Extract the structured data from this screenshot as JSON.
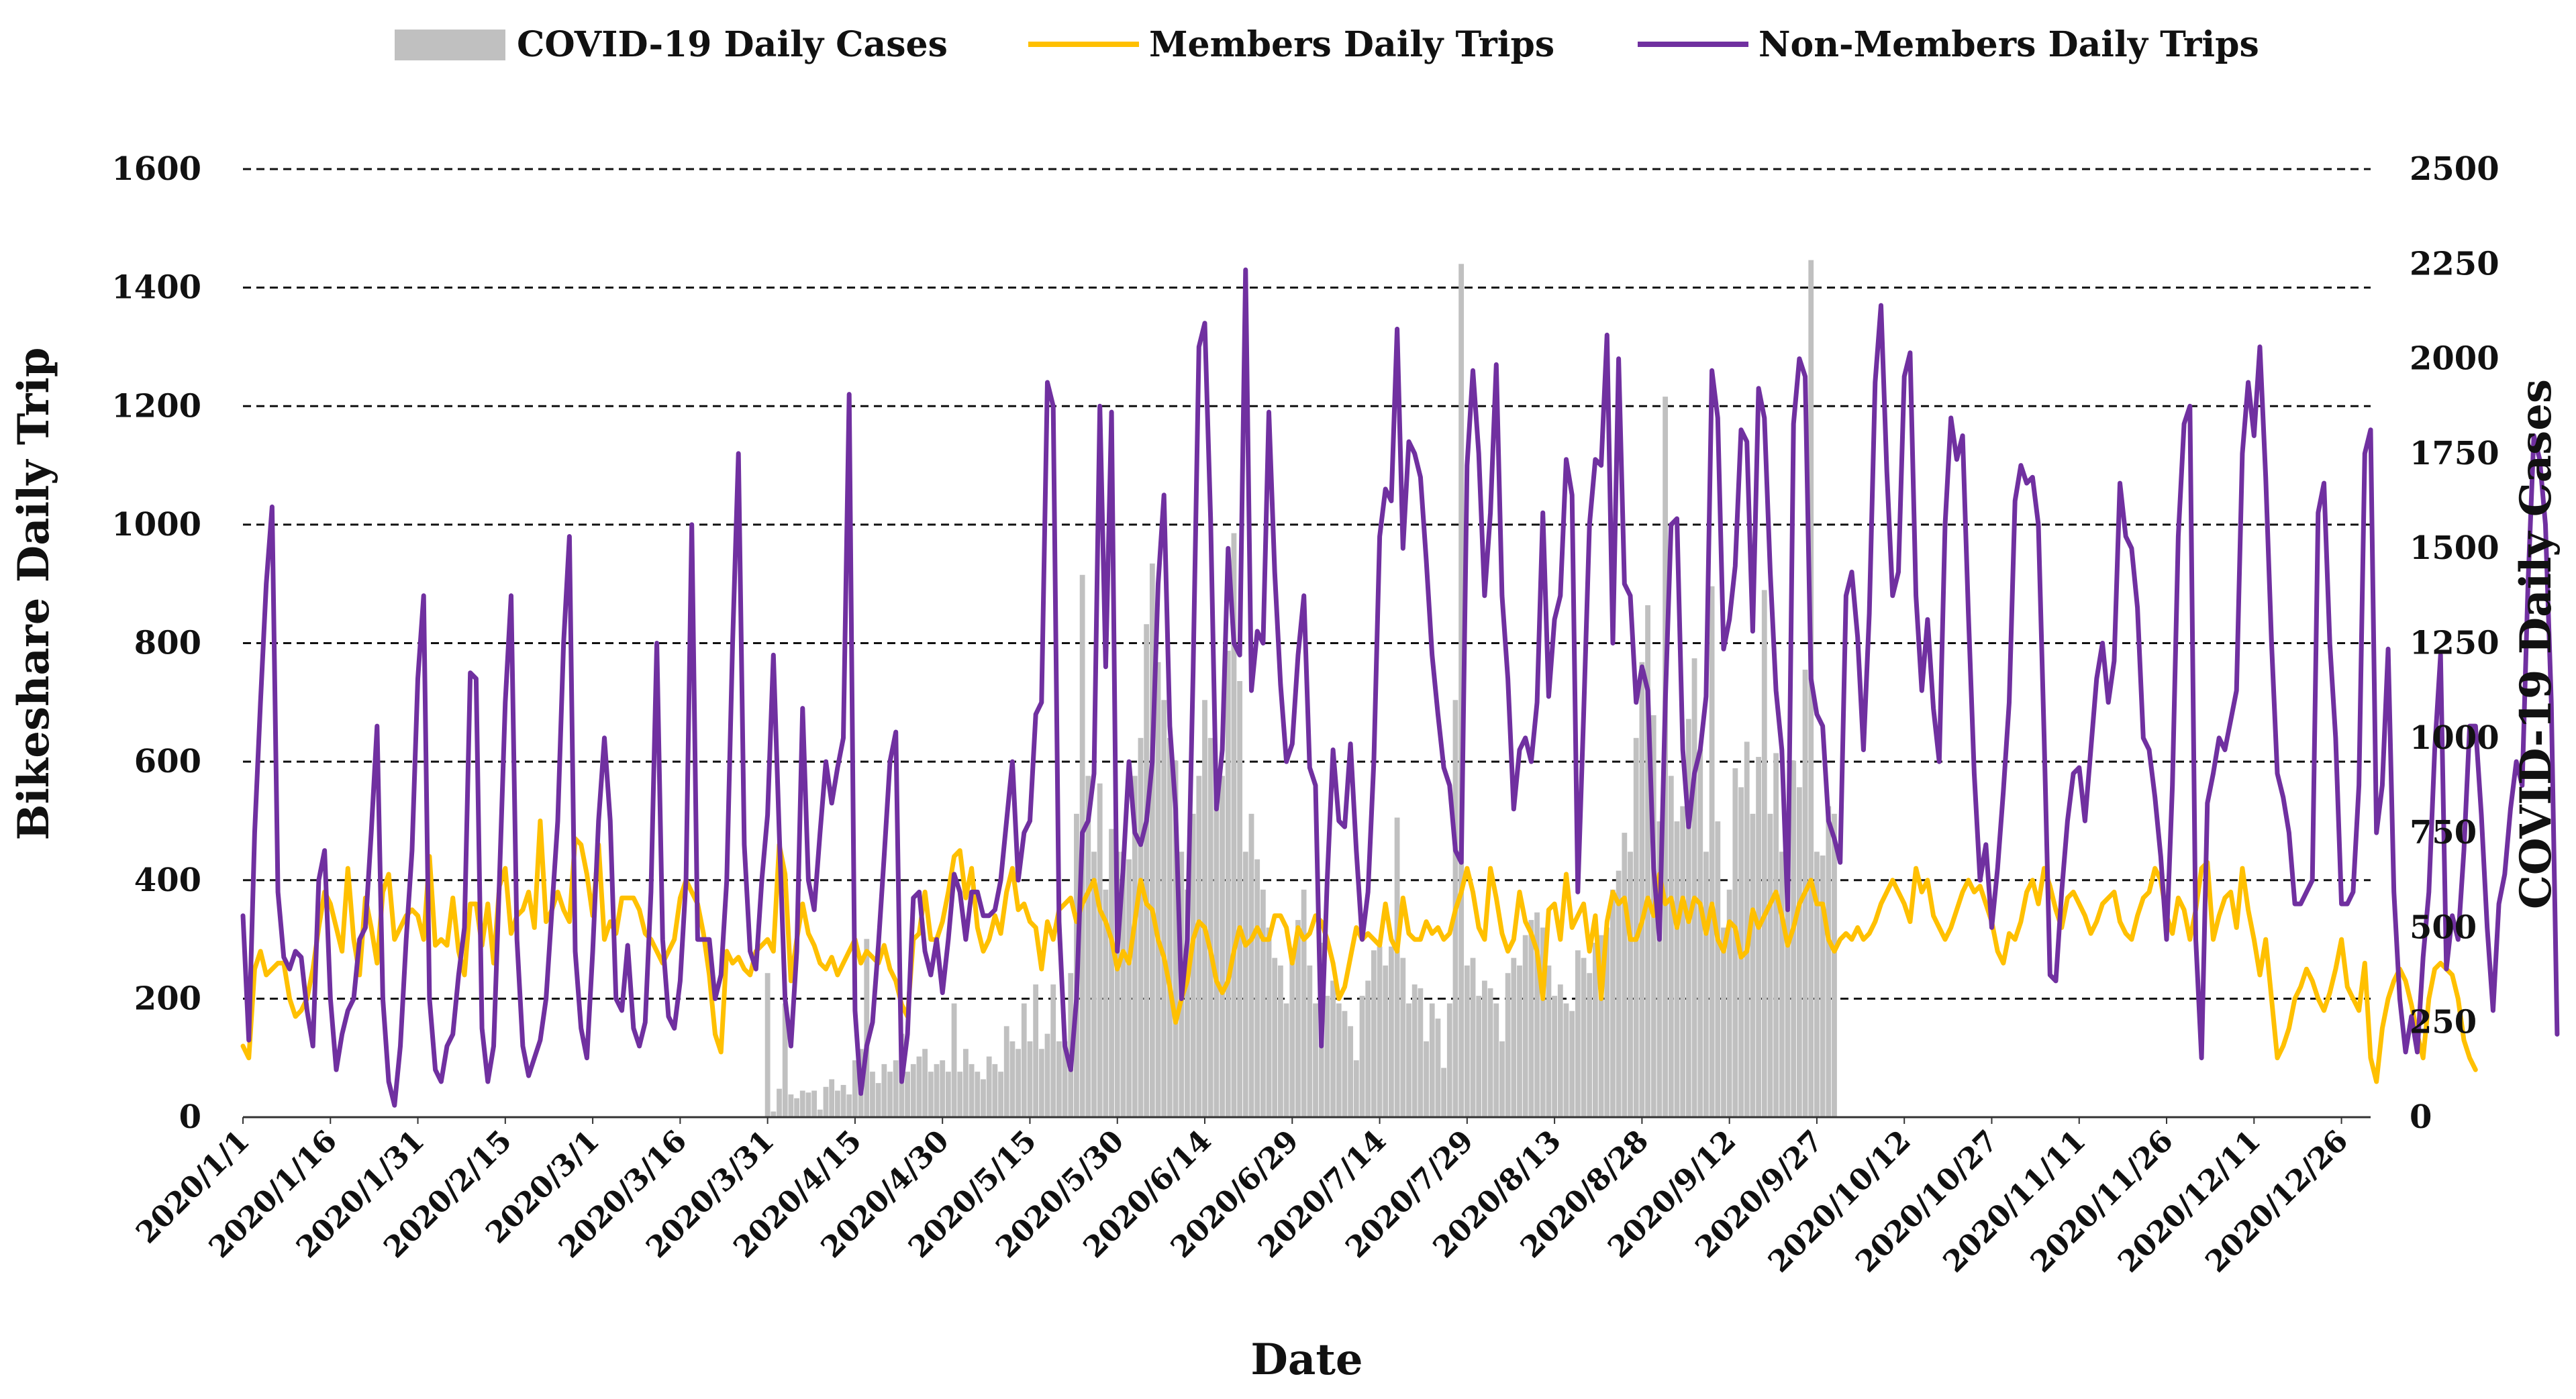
{
  "chart_data": {
    "type": "bar+line",
    "x_axis": {
      "title": "Date",
      "start_date": "2020/1/1",
      "days": 366,
      "tick_labels": [
        "2020/1/1",
        "2020/1/16",
        "2020/1/31",
        "2020/2/15",
        "2020/3/1",
        "2020/3/16",
        "2020/3/31",
        "2020/4/15",
        "2020/4/30",
        "2020/5/15",
        "2020/5/30",
        "2020/6/14",
        "2020/6/29",
        "2020/7/14",
        "2020/7/29",
        "2020/8/13",
        "2020/8/28",
        "2020/9/12",
        "2020/9/27",
        "2020/10/12",
        "2020/10/27",
        "2020/11/11",
        "2020/11/26",
        "2020/12/11",
        "2020/12/26"
      ],
      "tick_step_days": 15
    },
    "y_left": {
      "title": "Bikeshare Daily Trip",
      "ylim": [
        0,
        1600
      ],
      "ticks": [
        "0",
        "200",
        "400",
        "600",
        "800",
        "1000",
        "1200",
        "1400",
        "1600"
      ]
    },
    "y_right": {
      "title": "COVID-19 Daily Cases",
      "ylim": [
        0,
        2500
      ],
      "ticks": [
        "0",
        "250",
        "500",
        "750",
        "1000",
        "1250",
        "1500",
        "1750",
        "2000",
        "2250",
        "2500"
      ]
    },
    "grid": "horizontal dashed",
    "legend": {
      "position": "top",
      "items": [
        "COVID-19 Daily Cases",
        "Members Daily Trips",
        "Non-Members Daily Trips"
      ]
    },
    "colors": {
      "cases": "#c0c0c0",
      "members": "#ffc000",
      "non_members": "#7030a0"
    },
    "series": [
      {
        "name": "COVID-19 Daily Cases",
        "type": "bar",
        "axis": "right",
        "start_day": 90,
        "values": [
          380,
          15,
          75,
          300,
          60,
          50,
          70,
          65,
          70,
          20,
          80,
          100,
          70,
          85,
          60,
          150,
          180,
          470,
          120,
          90,
          140,
          120,
          150,
          220,
          120,
          140,
          160,
          180,
          120,
          140,
          150,
          120,
          300,
          120,
          180,
          140,
          120,
          100,
          160,
          140,
          120,
          240,
          200,
          180,
          300,
          200,
          350,
          180,
          220,
          350,
          200,
          200,
          380,
          800,
          1430,
          900,
          700,
          880,
          600,
          760,
          700,
          700,
          680,
          900,
          1000,
          1300,
          1460,
          1200,
          1100,
          1000,
          940,
          700,
          600,
          800,
          900,
          1100,
          1000,
          850,
          900,
          1230,
          1540,
          1150,
          700,
          800,
          680,
          600,
          500,
          420,
          400,
          300,
          420,
          520,
          600,
          400,
          300,
          460,
          320,
          360,
          300,
          280,
          240,
          150,
          320,
          360,
          440,
          450,
          400,
          450,
          790,
          420,
          300,
          350,
          340,
          200,
          300,
          260,
          130,
          300,
          1100,
          2250,
          400,
          420,
          320,
          360,
          340,
          300,
          200,
          380,
          420,
          400,
          480,
          520,
          540,
          500,
          400,
          320,
          350,
          300,
          280,
          440,
          420,
          380,
          460,
          480,
          500,
          600,
          650,
          750,
          700,
          1000,
          1200,
          1350,
          1060,
          780,
          1900,
          900,
          780,
          820,
          1050,
          1210,
          970,
          700,
          1400,
          780,
          500,
          600,
          920,
          870,
          990,
          800,
          950,
          1390,
          800,
          960,
          700,
          680,
          940,
          870,
          1180,
          2260,
          700,
          690,
          820,
          800
        ]
      },
      {
        "name": "Members Daily Trips",
        "type": "line",
        "axis": "left",
        "values": [
          120,
          100,
          250,
          280,
          240,
          250,
          260,
          260,
          200,
          170,
          180,
          200,
          250,
          320,
          380,
          360,
          320,
          280,
          420,
          300,
          240,
          370,
          320,
          260,
          380,
          410,
          300,
          320,
          340,
          350,
          340,
          300,
          440,
          290,
          300,
          290,
          370,
          280,
          240,
          360,
          360,
          290,
          360,
          260,
          390,
          420,
          310,
          340,
          350,
          380,
          320,
          500,
          330,
          350,
          380,
          350,
          330,
          470,
          460,
          410,
          340,
          460,
          300,
          330,
          310,
          370,
          370,
          370,
          350,
          310,
          300,
          280,
          260,
          280,
          300,
          370,
          400,
          380,
          360,
          310,
          240,
          140,
          110,
          280,
          260,
          270,
          250,
          240,
          280,
          290,
          300,
          280,
          460,
          410,
          230,
          300,
          360,
          310,
          290,
          260,
          250,
          270,
          240,
          260,
          280,
          300,
          260,
          280,
          270,
          260,
          290,
          250,
          230,
          190,
          170,
          300,
          310,
          380,
          300,
          300,
          330,
          380,
          440,
          450,
          370,
          420,
          320,
          280,
          300,
          340,
          310,
          380,
          420,
          350,
          360,
          330,
          320,
          250,
          330,
          300,
          350,
          360,
          370,
          330,
          360,
          380,
          400,
          350,
          330,
          300,
          250,
          280,
          260,
          330,
          400,
          360,
          350,
          300,
          270,
          220,
          160,
          200,
          230,
          300,
          330,
          320,
          280,
          230,
          210,
          230,
          280,
          320,
          290,
          300,
          320,
          300,
          300,
          340,
          340,
          320,
          260,
          320,
          300,
          310,
          340,
          330,
          300,
          260,
          200,
          220,
          270,
          320,
          300,
          310,
          300,
          290,
          360,
          300,
          280,
          370,
          310,
          300,
          300,
          330,
          310,
          320,
          300,
          310,
          350,
          380,
          420,
          380,
          320,
          300,
          420,
          370,
          310,
          280,
          300,
          380,
          330,
          310,
          280,
          200,
          350,
          360,
          300,
          410,
          320,
          340,
          360,
          280,
          340,
          200,
          330,
          380,
          360,
          370,
          300,
          300,
          330,
          370,
          340,
          410,
          360,
          370,
          320,
          370,
          330,
          370,
          360,
          310,
          360,
          300,
          280,
          330,
          320,
          270,
          280,
          350,
          320,
          340,
          360,
          380,
          340,
          290,
          320,
          360,
          380,
          400,
          360,
          360,
          300,
          280,
          300,
          310,
          300,
          320,
          300,
          310,
          330,
          360,
          380,
          400,
          380,
          360,
          330,
          420,
          380,
          400,
          340,
          320,
          300,
          320,
          350,
          380,
          400,
          380,
          390,
          360,
          330,
          280,
          260,
          310,
          300,
          330,
          380,
          400,
          360,
          420,
          390,
          350,
          320,
          370,
          380,
          360,
          340,
          310,
          330,
          360,
          370,
          380,
          330,
          310,
          300,
          340,
          370,
          380,
          420,
          400,
          340,
          310,
          370,
          350,
          300,
          350,
          420,
          430,
          300,
          340,
          370,
          380,
          320,
          420,
          350,
          300,
          240,
          300,
          200,
          100,
          120,
          150,
          200,
          220,
          250,
          230,
          200,
          180,
          210,
          250,
          300,
          220,
          200,
          180,
          260,
          100,
          60,
          150,
          200,
          230,
          250,
          230,
          190,
          140,
          100,
          200,
          250,
          260,
          250,
          240,
          200,
          130,
          100,
          80
        ]
      },
      {
        "name": "Non-Members Daily Trips",
        "type": "line",
        "axis": "left",
        "values": [
          340,
          130,
          480,
          700,
          900,
          1030,
          380,
          270,
          250,
          280,
          270,
          180,
          120,
          400,
          450,
          200,
          80,
          140,
          180,
          200,
          300,
          320,
          480,
          660,
          200,
          60,
          20,
          120,
          300,
          450,
          740,
          880,
          200,
          80,
          60,
          120,
          140,
          240,
          320,
          750,
          740,
          150,
          60,
          120,
          400,
          700,
          880,
          300,
          120,
          70,
          100,
          130,
          200,
          350,
          500,
          800,
          980,
          280,
          150,
          100,
          280,
          500,
          640,
          500,
          200,
          180,
          290,
          150,
          120,
          160,
          380,
          800,
          300,
          170,
          150,
          230,
          400,
          1000,
          300,
          300,
          300,
          200,
          240,
          400,
          800,
          1120,
          460,
          280,
          250,
          400,
          510,
          780,
          480,
          200,
          120,
          280,
          690,
          400,
          350,
          480,
          600,
          530,
          590,
          640,
          1220,
          180,
          40,
          120,
          160,
          290,
          440,
          600,
          650,
          60,
          140,
          370,
          380,
          280,
          240,
          300,
          210,
          300,
          410,
          380,
          300,
          380,
          380,
          340,
          340,
          350,
          400,
          500,
          600,
          400,
          480,
          500,
          680,
          700,
          1240,
          1200,
          330,
          120,
          80,
          200,
          480,
          500,
          580,
          1200,
          760,
          1190,
          280,
          420,
          600,
          480,
          460,
          500,
          600,
          900,
          1050,
          660,
          520,
          200,
          300,
          750,
          1300,
          1340,
          1010,
          520,
          620,
          960,
          800,
          780,
          1430,
          720,
          820,
          800,
          1190,
          920,
          730,
          600,
          630,
          780,
          880,
          590,
          560,
          120,
          400,
          620,
          500,
          490,
          630,
          450,
          300,
          380,
          600,
          980,
          1060,
          1040,
          1330,
          960,
          1140,
          1120,
          1080,
          940,
          780,
          680,
          590,
          560,
          450,
          430,
          1100,
          1260,
          1120,
          880,
          1020,
          1270,
          880,
          740,
          520,
          620,
          640,
          600,
          700,
          1020,
          710,
          840,
          880,
          1110,
          1050,
          380,
          680,
          1000,
          1110,
          1100,
          1320,
          800,
          1280,
          900,
          880,
          700,
          760,
          720,
          420,
          300,
          700,
          1000,
          1010,
          620,
          490,
          580,
          620,
          710,
          1260,
          1180,
          790,
          840,
          930,
          1160,
          1140,
          820,
          1230,
          1180,
          920,
          720,
          620,
          350,
          1170,
          1280,
          1250,
          740,
          680,
          660,
          500,
          470,
          430,
          880,
          920,
          810,
          620,
          850,
          1240,
          1370,
          1090,
          880,
          920,
          1250,
          1290,
          880,
          720,
          840,
          690,
          600,
          1000,
          1180,
          1110,
          1150,
          850,
          580,
          400,
          460,
          320,
          420,
          550,
          700,
          1040,
          1100,
          1070,
          1080,
          1000,
          640,
          240,
          230,
          380,
          500,
          580,
          590,
          500,
          620,
          740,
          800,
          700,
          770,
          1070,
          980,
          960,
          860,
          640,
          620,
          540,
          440,
          300,
          560,
          980,
          1170,
          1200,
          300,
          100,
          530,
          580,
          640,
          620,
          670,
          720,
          1120,
          1240,
          1150,
          1300,
          1080,
          800,
          580,
          540,
          480,
          360,
          360,
          380,
          400,
          1020,
          1070,
          800,
          640,
          360,
          360,
          380,
          560,
          1120,
          1160,
          480,
          560,
          790,
          380,
          200,
          110,
          170,
          110,
          270,
          380,
          620,
          780,
          250,
          340,
          300,
          450,
          660,
          660,
          510,
          320,
          180,
          360,
          410,
          520,
          600,
          560,
          900,
          1150,
          1110,
          1000,
          700,
          140
        ]
      }
    ]
  }
}
